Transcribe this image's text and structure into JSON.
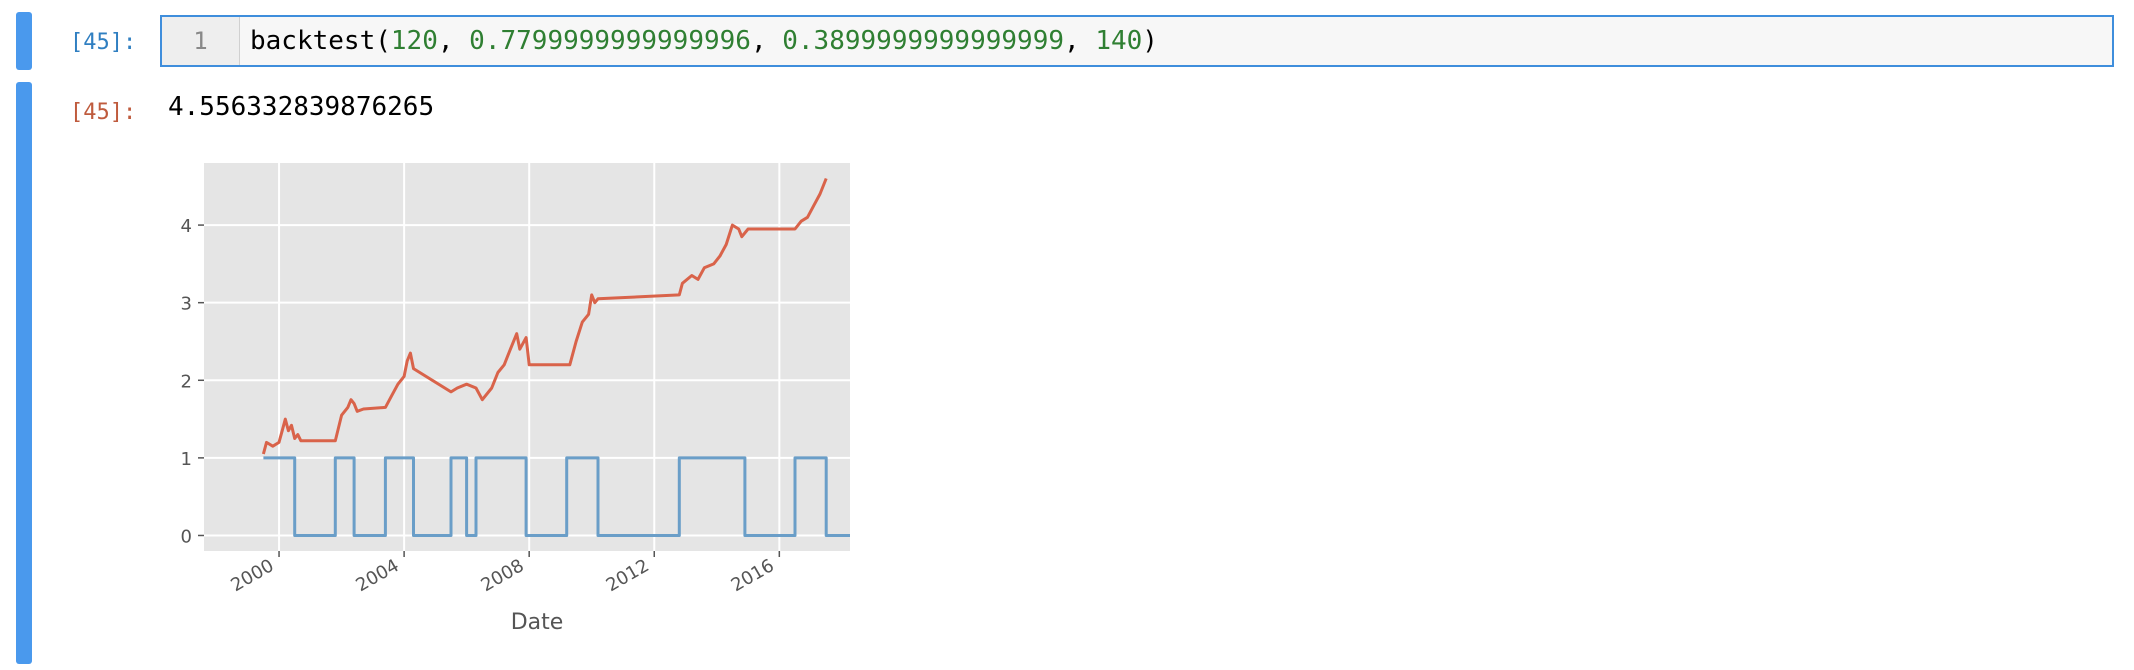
{
  "cell_in": {
    "prompt": "[45]:",
    "line_number": "1",
    "code": {
      "func": "backtest(",
      "args": [
        "120",
        "0.7799999999999996",
        "0.3899999999999999",
        "140"
      ],
      "close": ")"
    }
  },
  "cell_out": {
    "prompt": "[45]:",
    "result": "4.556332839876265"
  },
  "colors": {
    "accent": "#4a99ed",
    "in_prompt": "#307fc1",
    "out_prompt": "#bf5b3d",
    "number": "#2f7f32",
    "series_equity": "#d9634a",
    "series_position": "#6a9ec8",
    "plot_bg": "#e5e5e5"
  },
  "chart_data": {
    "type": "line",
    "xlabel": "Date",
    "x_ticks": [
      "2000",
      "2004",
      "2008",
      "2012",
      "2016"
    ],
    "y_ticks": [
      "0",
      "1",
      "2",
      "3",
      "4"
    ],
    "xlim": [
      1997.6,
      2018.9
    ],
    "ylim": [
      -0.2,
      4.8
    ],
    "grid": true,
    "series": [
      {
        "values": [
          [
            1999.5,
            1.05
          ],
          [
            1999.6,
            1.2
          ],
          [
            1999.8,
            1.15
          ],
          [
            2000.0,
            1.2
          ],
          [
            2000.1,
            1.35
          ],
          [
            2000.2,
            1.5
          ],
          [
            2000.3,
            1.35
          ],
          [
            2000.4,
            1.42
          ],
          [
            2000.5,
            1.25
          ],
          [
            2000.6,
            1.3
          ],
          [
            2000.7,
            1.22
          ],
          [
            2001.8,
            1.22
          ],
          [
            2002.0,
            1.55
          ],
          [
            2002.2,
            1.65
          ],
          [
            2002.3,
            1.75
          ],
          [
            2002.4,
            1.7
          ],
          [
            2002.5,
            1.6
          ],
          [
            2002.7,
            1.63
          ],
          [
            2003.4,
            1.65
          ],
          [
            2003.6,
            1.8
          ],
          [
            2003.8,
            1.95
          ],
          [
            2004.0,
            2.05
          ],
          [
            2004.1,
            2.25
          ],
          [
            2004.2,
            2.35
          ],
          [
            2004.3,
            2.15
          ],
          [
            2005.5,
            1.85
          ],
          [
            2005.7,
            1.9
          ],
          [
            2006.0,
            1.95
          ],
          [
            2006.3,
            1.9
          ],
          [
            2006.5,
            1.75
          ],
          [
            2006.8,
            1.9
          ],
          [
            2007.0,
            2.1
          ],
          [
            2007.2,
            2.2
          ],
          [
            2007.4,
            2.4
          ],
          [
            2007.6,
            2.6
          ],
          [
            2007.7,
            2.4
          ],
          [
            2007.9,
            2.55
          ],
          [
            2008.0,
            2.2
          ],
          [
            2009.3,
            2.2
          ],
          [
            2009.5,
            2.5
          ],
          [
            2009.7,
            2.75
          ],
          [
            2009.9,
            2.85
          ],
          [
            2010.0,
            3.1
          ],
          [
            2010.1,
            3.0
          ],
          [
            2010.2,
            3.05
          ],
          [
            2012.8,
            3.1
          ],
          [
            2012.9,
            3.25
          ],
          [
            2013.2,
            3.35
          ],
          [
            2013.4,
            3.3
          ],
          [
            2013.6,
            3.45
          ],
          [
            2013.9,
            3.5
          ],
          [
            2014.1,
            3.6
          ],
          [
            2014.3,
            3.75
          ],
          [
            2014.5,
            4.0
          ],
          [
            2014.7,
            3.95
          ],
          [
            2014.8,
            3.85
          ],
          [
            2015.0,
            3.95
          ],
          [
            2016.5,
            3.95
          ],
          [
            2016.7,
            4.05
          ],
          [
            2016.9,
            4.1
          ],
          [
            2017.1,
            4.25
          ],
          [
            2017.3,
            4.4
          ],
          [
            2017.5,
            4.6
          ]
        ]
      },
      {
        "values": [
          [
            1999.5,
            1
          ],
          [
            2000.5,
            1
          ],
          [
            2000.5,
            0
          ],
          [
            2001.8,
            0
          ],
          [
            2001.8,
            1
          ],
          [
            2002.4,
            1
          ],
          [
            2002.4,
            0
          ],
          [
            2003.4,
            0
          ],
          [
            2003.4,
            1
          ],
          [
            2004.3,
            1
          ],
          [
            2004.3,
            0
          ],
          [
            2005.5,
            0
          ],
          [
            2005.5,
            1
          ],
          [
            2006.0,
            1
          ],
          [
            2006.0,
            0
          ],
          [
            2006.3,
            0
          ],
          [
            2006.3,
            1
          ],
          [
            2007.9,
            1
          ],
          [
            2007.9,
            0
          ],
          [
            2009.2,
            0
          ],
          [
            2009.2,
            1
          ],
          [
            2010.2,
            1
          ],
          [
            2010.2,
            0
          ],
          [
            2012.8,
            0
          ],
          [
            2012.8,
            1
          ],
          [
            2014.9,
            1
          ],
          [
            2014.9,
            0
          ],
          [
            2016.5,
            0
          ],
          [
            2016.5,
            1
          ],
          [
            2017.5,
            1
          ],
          [
            2017.5,
            0
          ],
          [
            2018.9,
            0
          ]
        ]
      }
    ]
  }
}
